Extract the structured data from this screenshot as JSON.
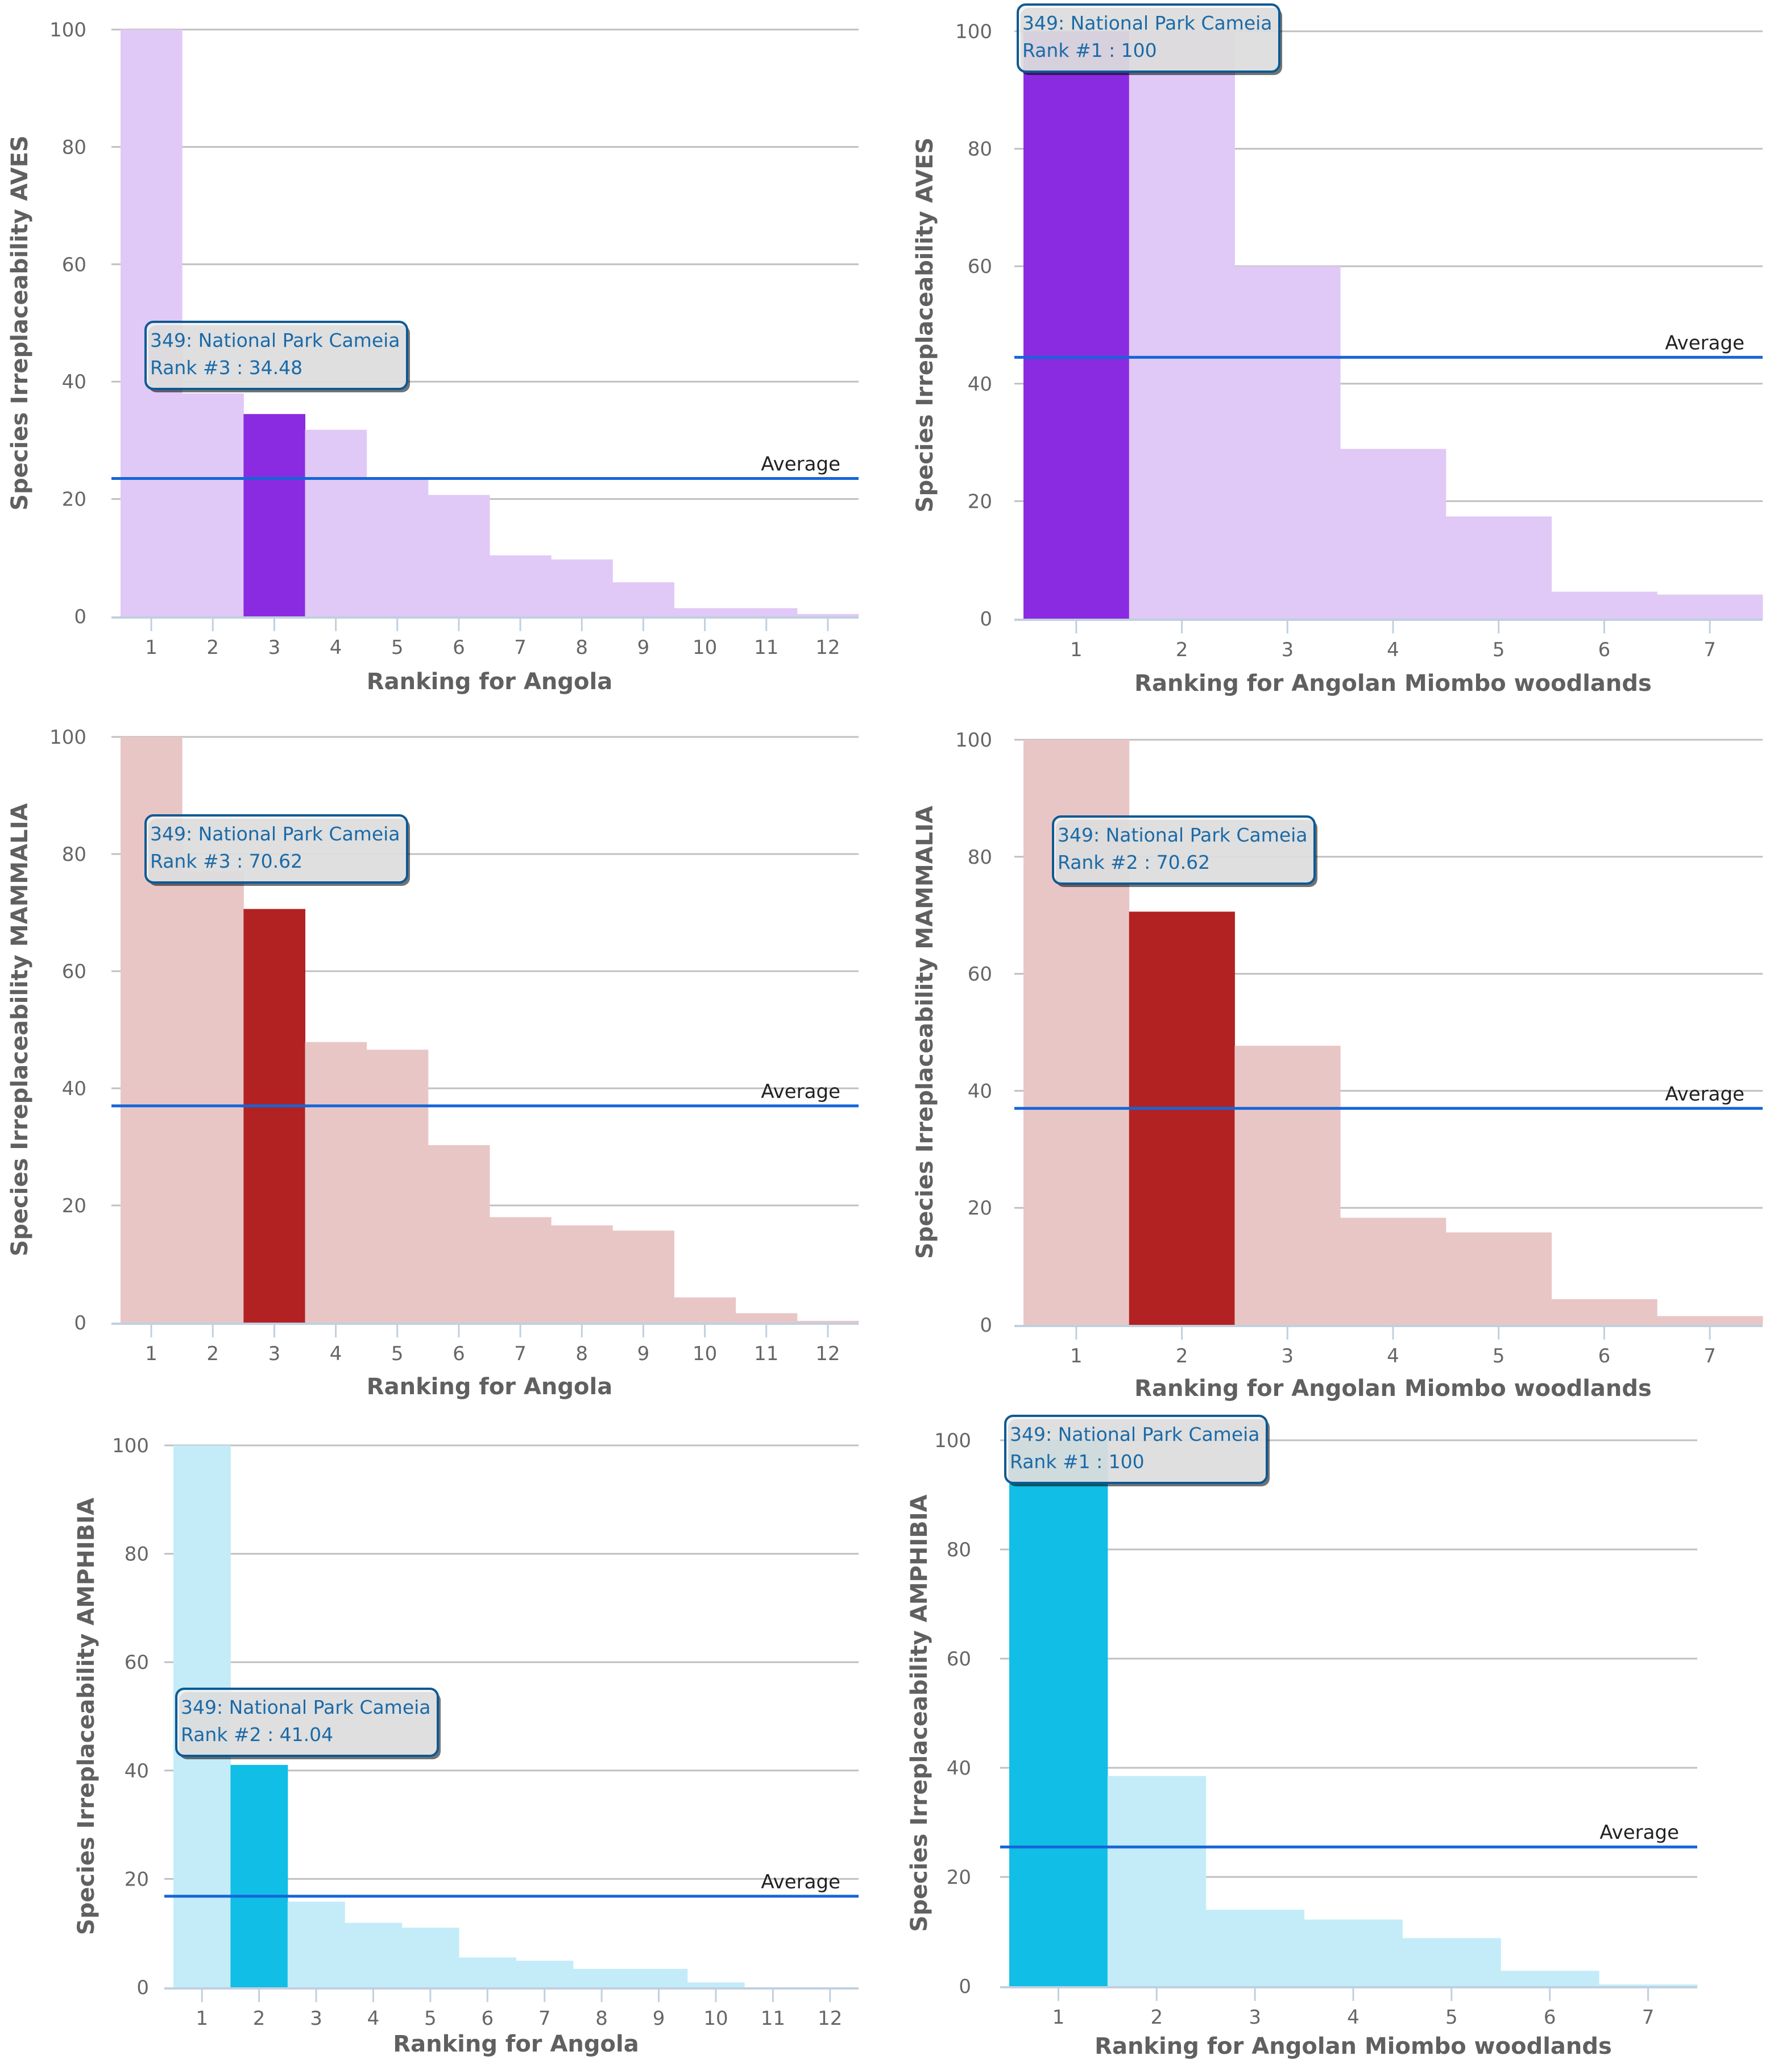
{
  "colors": {
    "aves_light": "#e0c9f6",
    "aves_highlight": "#8a2be2",
    "mammalia_light": "#e9c6c6",
    "mammalia_highlight": "#b22222",
    "amphibia_light": "#c3ecf8",
    "amphibia_highlight": "#10bee6",
    "average_line": "#1565d8",
    "gridline": "#c0c0c0",
    "axis_line": "#c0d0e0",
    "tooltip_border": "#0d5a94",
    "tooltip_bg": "#f2f2f2"
  },
  "chart_data": [
    {
      "id": "aves-angola",
      "type": "bar",
      "title": "",
      "xlabel": "Ranking for Angola",
      "ylabel": "Species Irreplaceability AVES",
      "categories": [
        "1",
        "2",
        "3",
        "4",
        "5",
        "6",
        "7",
        "8",
        "9",
        "10",
        "11",
        "12"
      ],
      "values": [
        100,
        38,
        34.48,
        31.8,
        23.7,
        20.7,
        10.4,
        9.7,
        5.8,
        1.4,
        1.4,
        0.4
      ],
      "highlight_index": 2,
      "average": 23.5,
      "average_label": "Average",
      "ylim": [
        0,
        100
      ],
      "yticks": [
        0,
        20,
        40,
        60,
        80,
        100
      ],
      "grid": true,
      "palette": "aves",
      "tooltip": {
        "line1": "349: National Park Cameia",
        "line2": "Rank #3 : 34.48"
      }
    },
    {
      "id": "aves-miombo",
      "type": "bar",
      "title": "",
      "xlabel": "Ranking for Angolan Miombo woodlands",
      "ylabel": "Species Irreplaceability AVES",
      "categories": [
        "1",
        "2",
        "3",
        "4",
        "5",
        "6",
        "7"
      ],
      "values": [
        100,
        100,
        60,
        28.9,
        17.4,
        4.6,
        4.1
      ],
      "highlight_index": 0,
      "average": 44.5,
      "average_label": "Average",
      "ylim": [
        0,
        100
      ],
      "yticks": [
        0,
        20,
        40,
        60,
        80,
        100
      ],
      "grid": true,
      "palette": "aves",
      "tooltip": {
        "line1": "349: National Park Cameia",
        "line2": "Rank #1 : 100"
      }
    },
    {
      "id": "mammalia-angola",
      "type": "bar",
      "title": "",
      "xlabel": "Ranking for Angola",
      "ylabel": "Species Irreplaceability MAMMALIA",
      "categories": [
        "1",
        "2",
        "3",
        "4",
        "5",
        "6",
        "7",
        "8",
        "9",
        "10",
        "11",
        "12"
      ],
      "values": [
        100,
        77,
        70.62,
        47.9,
        46.6,
        30.3,
        18.0,
        16.6,
        15.7,
        4.3,
        1.6,
        0.3
      ],
      "highlight_index": 2,
      "average": 37,
      "average_label": "Average",
      "ylim": [
        0,
        100
      ],
      "yticks": [
        0,
        20,
        40,
        60,
        80,
        100
      ],
      "grid": true,
      "palette": "mammalia",
      "tooltip": {
        "line1": "349: National Park Cameia",
        "line2": "Rank #3 : 70.62"
      }
    },
    {
      "id": "mammalia-miombo",
      "type": "bar",
      "title": "",
      "xlabel": "Ranking for Angolan Miombo woodlands",
      "ylabel": "Species Irreplaceability MAMMALIA",
      "categories": [
        "1",
        "2",
        "3",
        "4",
        "5",
        "6",
        "7"
      ],
      "values": [
        100,
        70.62,
        47.7,
        18.3,
        15.8,
        4.4,
        1.5
      ],
      "highlight_index": 1,
      "average": 37,
      "average_label": "Average",
      "ylim": [
        0,
        100
      ],
      "yticks": [
        0,
        20,
        40,
        60,
        80,
        100
      ],
      "grid": true,
      "palette": "mammalia",
      "tooltip": {
        "line1": "349: National Park Cameia",
        "line2": "Rank #2 : 70.62"
      }
    },
    {
      "id": "amphibia-angola",
      "type": "bar",
      "title": "",
      "xlabel": "Ranking for Angola",
      "ylabel": "Species Irreplaceability AMPHIBIA",
      "categories": [
        "1",
        "2",
        "3",
        "4",
        "5",
        "6",
        "7",
        "8",
        "9",
        "10",
        "11",
        "12"
      ],
      "values": [
        100,
        41.04,
        15.8,
        11.9,
        11.0,
        5.5,
        4.9,
        3.4,
        3.4,
        0.9,
        0,
        0
      ],
      "highlight_index": 1,
      "average": 16.8,
      "average_label": "Average",
      "ylim": [
        0,
        100
      ],
      "yticks": [
        0,
        20,
        40,
        60,
        80,
        100
      ],
      "grid": true,
      "palette": "amphibia",
      "tooltip": {
        "line1": "349: National Park Cameia",
        "line2": "Rank #2 : 41.04"
      }
    },
    {
      "id": "amphibia-miombo",
      "type": "bar",
      "title": "",
      "xlabel": "Ranking for Angolan Miombo woodlands",
      "ylabel": "Species Irreplaceability AMPHIBIA",
      "categories": [
        "1",
        "2",
        "3",
        "4",
        "5",
        "6",
        "7"
      ],
      "values": [
        100,
        38.5,
        14.0,
        12.2,
        8.8,
        2.8,
        0.3
      ],
      "highlight_index": 0,
      "average": 25.5,
      "average_label": "Average",
      "ylim": [
        0,
        100
      ],
      "yticks": [
        0,
        20,
        40,
        60,
        80,
        100
      ],
      "grid": true,
      "palette": "amphibia",
      "tooltip": {
        "line1": "349: National Park Cameia",
        "line2": "Rank #1 : 100"
      }
    }
  ]
}
